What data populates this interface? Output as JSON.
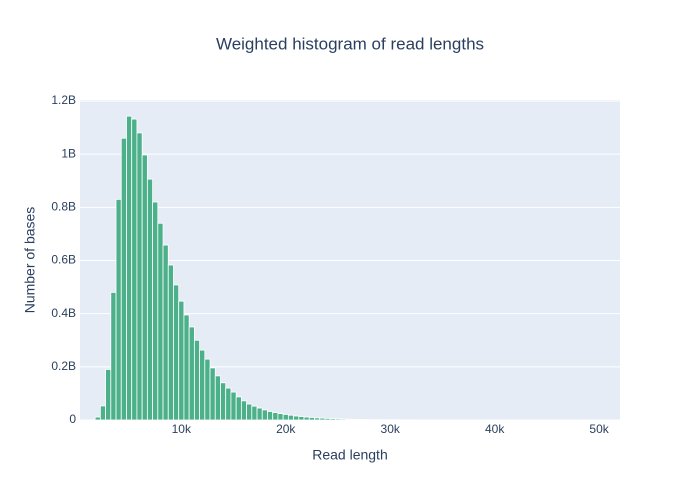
{
  "chart_data": {
    "type": "histogram",
    "title": "Weighted histogram of read lengths",
    "xlabel": "Read length",
    "ylabel": "Number of bases",
    "color": "#4cb08a",
    "grid": true,
    "bins": [
      1750,
      2250,
      2750,
      3250,
      3750,
      4250,
      4750,
      5250,
      5750,
      6250,
      6750,
      7250,
      7750,
      8250,
      8750,
      9250,
      9750,
      10250,
      10750,
      11250,
      11750,
      12250,
      12750,
      13250,
      13750,
      14250,
      14750,
      15250,
      15750,
      16250,
      16750,
      17250,
      17750,
      18250,
      18750,
      19250,
      19750,
      20250,
      20750,
      21250,
      21750,
      22250,
      22750,
      23250,
      23750,
      24250,
      24750,
      25250,
      25750,
      26250,
      26750,
      27250,
      27750,
      28250,
      28750,
      29250,
      29750,
      30250,
      30750,
      31250,
      31750,
      32250,
      32750,
      33250,
      33750,
      34250,
      34750,
      35250,
      35750,
      36250,
      36750,
      37250,
      37750,
      38250,
      38750,
      39250,
      39750,
      40250,
      40750,
      41250,
      41750,
      42250,
      42750,
      43250,
      43750,
      44250,
      44750,
      45250,
      45750,
      46250,
      46750,
      47250,
      47750,
      48250,
      48750,
      49250,
      49750,
      50250,
      50750,
      51250,
      51750
    ],
    "values": [
      11000000,
      53000000,
      190000000,
      480000000,
      830000000,
      1060000000,
      1143000000,
      1132000000,
      1080000000,
      997000000,
      906000000,
      820000000,
      740000000,
      658000000,
      583000000,
      508000000,
      447000000,
      395000000,
      350000000,
      300000000,
      263000000,
      229000000,
      196000000,
      166000000,
      140000000,
      120000000,
      105000000,
      87000000,
      72000000,
      60000000,
      52000000,
      45000000,
      38000000,
      32000000,
      28000000,
      24000000,
      21000000,
      18000000,
      15000000,
      13000000,
      11000000,
      9500000,
      8000000,
      7000000,
      6000000,
      5000000,
      4300000,
      3700000,
      3100000,
      2700000,
      2300000,
      2000000,
      1700000,
      1400000,
      1200000,
      1000000,
      900000,
      780000,
      680000,
      590000,
      510000,
      440000,
      380000,
      330000,
      290000,
      250000,
      220000,
      190000,
      165000,
      145000,
      125000,
      110000,
      95000,
      82000,
      71000,
      62000,
      54000,
      47000,
      41000,
      36000,
      31000,
      27000,
      24000,
      21000,
      18000,
      16000,
      14000,
      12000,
      10500,
      9000,
      8000,
      7000,
      6000,
      5200,
      4500,
      3900,
      3400,
      3000,
      2600,
      2200
    ],
    "xlim": [
      300,
      52000
    ],
    "xticks": [
      {
        "value": 10000,
        "label": "10k"
      },
      {
        "value": 20000,
        "label": "20k"
      },
      {
        "value": 30000,
        "label": "30k"
      },
      {
        "value": 40000,
        "label": "40k"
      },
      {
        "value": 50000,
        "label": "50k"
      }
    ],
    "ylim": [
      0,
      1200000000
    ],
    "yticks": [
      0,
      {
        "value": 200000000,
        "label": "0.2B"
      },
      {
        "value": 400000000,
        "label": "0.4B"
      },
      {
        "value": 600000000,
        "label": "0.6B"
      },
      {
        "value": 800000000,
        "label": "0.8B"
      },
      {
        "value": 1000000000,
        "label": "1B"
      },
      {
        "value": 1200000000,
        "label": "1.2B"
      }
    ]
  }
}
